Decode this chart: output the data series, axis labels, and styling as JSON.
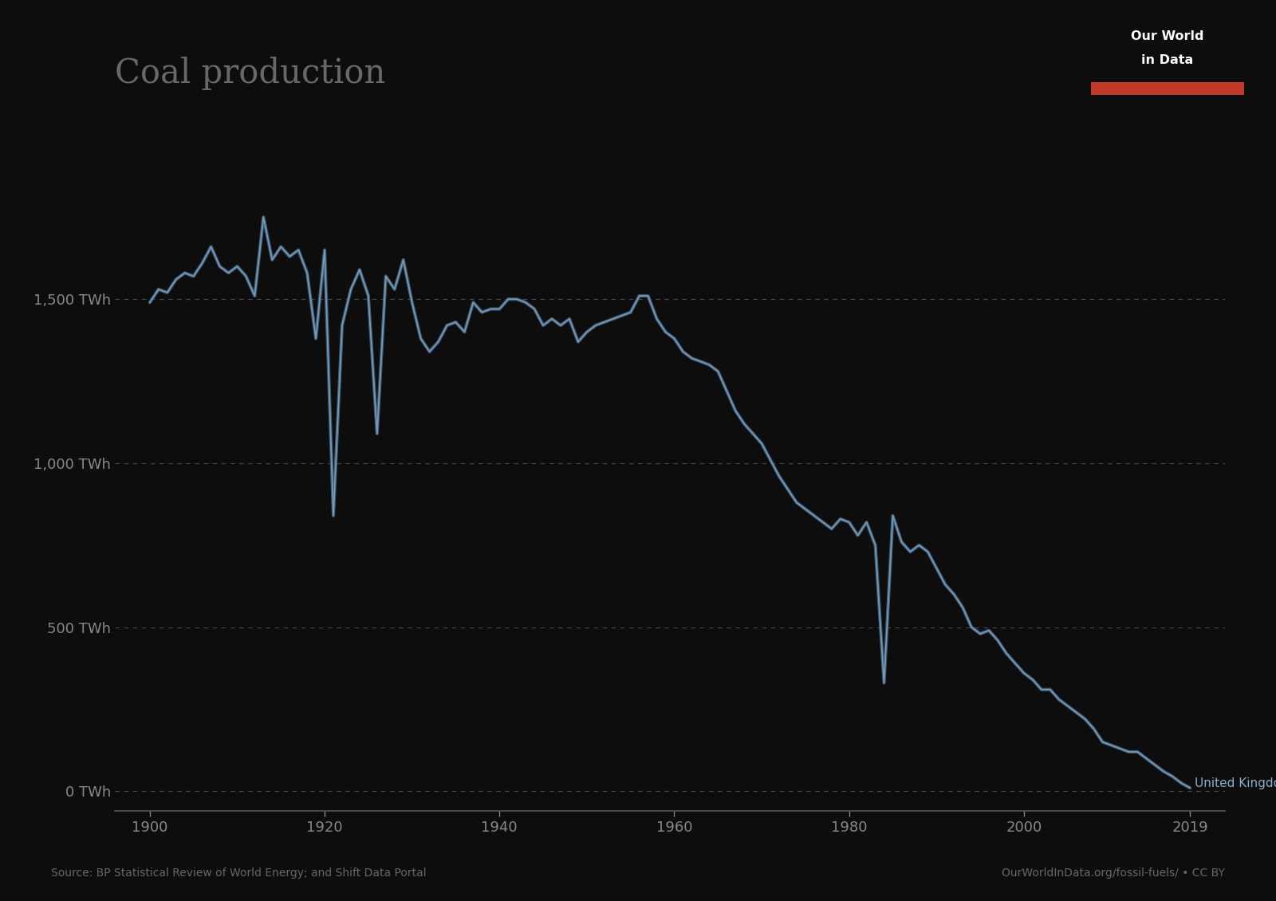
{
  "title": "Coal production",
  "yticks": [
    0,
    500,
    1000,
    1500
  ],
  "ytick_labels": [
    "0 TWh",
    "500 TWh",
    "1,000 TWh",
    "1,500 TWh"
  ],
  "xlim": [
    1896,
    2023
  ],
  "ylim": [
    -60,
    2000
  ],
  "background_color": "#0d0d0d",
  "line_color_dark": "#3d5a75",
  "line_color_light": "#7a9bb5",
  "grid_color": "#4a4a4a",
  "title_color": "#686868",
  "tick_color": "#888888",
  "label_color": "#8aafc8",
  "source_text": "Source: BP Statistical Review of World Energy; and Shift Data Portal",
  "owid_text": "OurWorldInData.org/fossil-fuels/ • CC BY",
  "series_label": "United Kingdom",
  "xticks": [
    1900,
    1920,
    1940,
    1960,
    1980,
    2000,
    2019
  ],
  "years": [
    1900,
    1901,
    1902,
    1903,
    1904,
    1905,
    1906,
    1907,
    1908,
    1909,
    1910,
    1911,
    1912,
    1913,
    1914,
    1915,
    1916,
    1917,
    1918,
    1919,
    1920,
    1921,
    1922,
    1923,
    1924,
    1925,
    1926,
    1927,
    1928,
    1929,
    1930,
    1931,
    1932,
    1933,
    1934,
    1935,
    1936,
    1937,
    1938,
    1939,
    1940,
    1941,
    1942,
    1943,
    1944,
    1945,
    1946,
    1947,
    1948,
    1949,
    1950,
    1951,
    1952,
    1953,
    1954,
    1955,
    1956,
    1957,
    1958,
    1959,
    1960,
    1961,
    1962,
    1963,
    1964,
    1965,
    1966,
    1967,
    1968,
    1969,
    1970,
    1971,
    1972,
    1973,
    1974,
    1975,
    1976,
    1977,
    1978,
    1979,
    1980,
    1981,
    1982,
    1983,
    1984,
    1985,
    1986,
    1987,
    1988,
    1989,
    1990,
    1991,
    1992,
    1993,
    1994,
    1995,
    1996,
    1997,
    1998,
    1999,
    2000,
    2001,
    2002,
    2003,
    2004,
    2005,
    2006,
    2007,
    2008,
    2009,
    2010,
    2011,
    2012,
    2013,
    2014,
    2015,
    2016,
    2017,
    2018,
    2019
  ],
  "values": [
    1490,
    1530,
    1520,
    1560,
    1580,
    1570,
    1610,
    1660,
    1600,
    1580,
    1600,
    1570,
    1510,
    1750,
    1620,
    1660,
    1630,
    1650,
    1580,
    1380,
    1650,
    840,
    1420,
    1530,
    1590,
    1510,
    1090,
    1570,
    1530,
    1620,
    1490,
    1380,
    1340,
    1370,
    1420,
    1430,
    1400,
    1490,
    1460,
    1470,
    1470,
    1500,
    1500,
    1490,
    1470,
    1420,
    1440,
    1420,
    1440,
    1370,
    1400,
    1420,
    1430,
    1440,
    1450,
    1460,
    1510,
    1510,
    1440,
    1400,
    1380,
    1340,
    1320,
    1310,
    1300,
    1280,
    1220,
    1160,
    1120,
    1090,
    1060,
    1010,
    960,
    920,
    880,
    860,
    840,
    820,
    800,
    830,
    820,
    780,
    820,
    750,
    330,
    840,
    760,
    730,
    750,
    730,
    680,
    630,
    600,
    560,
    500,
    480,
    490,
    460,
    420,
    390,
    360,
    340,
    310,
    310,
    280,
    260,
    240,
    220,
    190,
    150,
    140,
    130,
    120,
    120,
    100,
    80,
    60,
    45,
    25,
    10
  ]
}
